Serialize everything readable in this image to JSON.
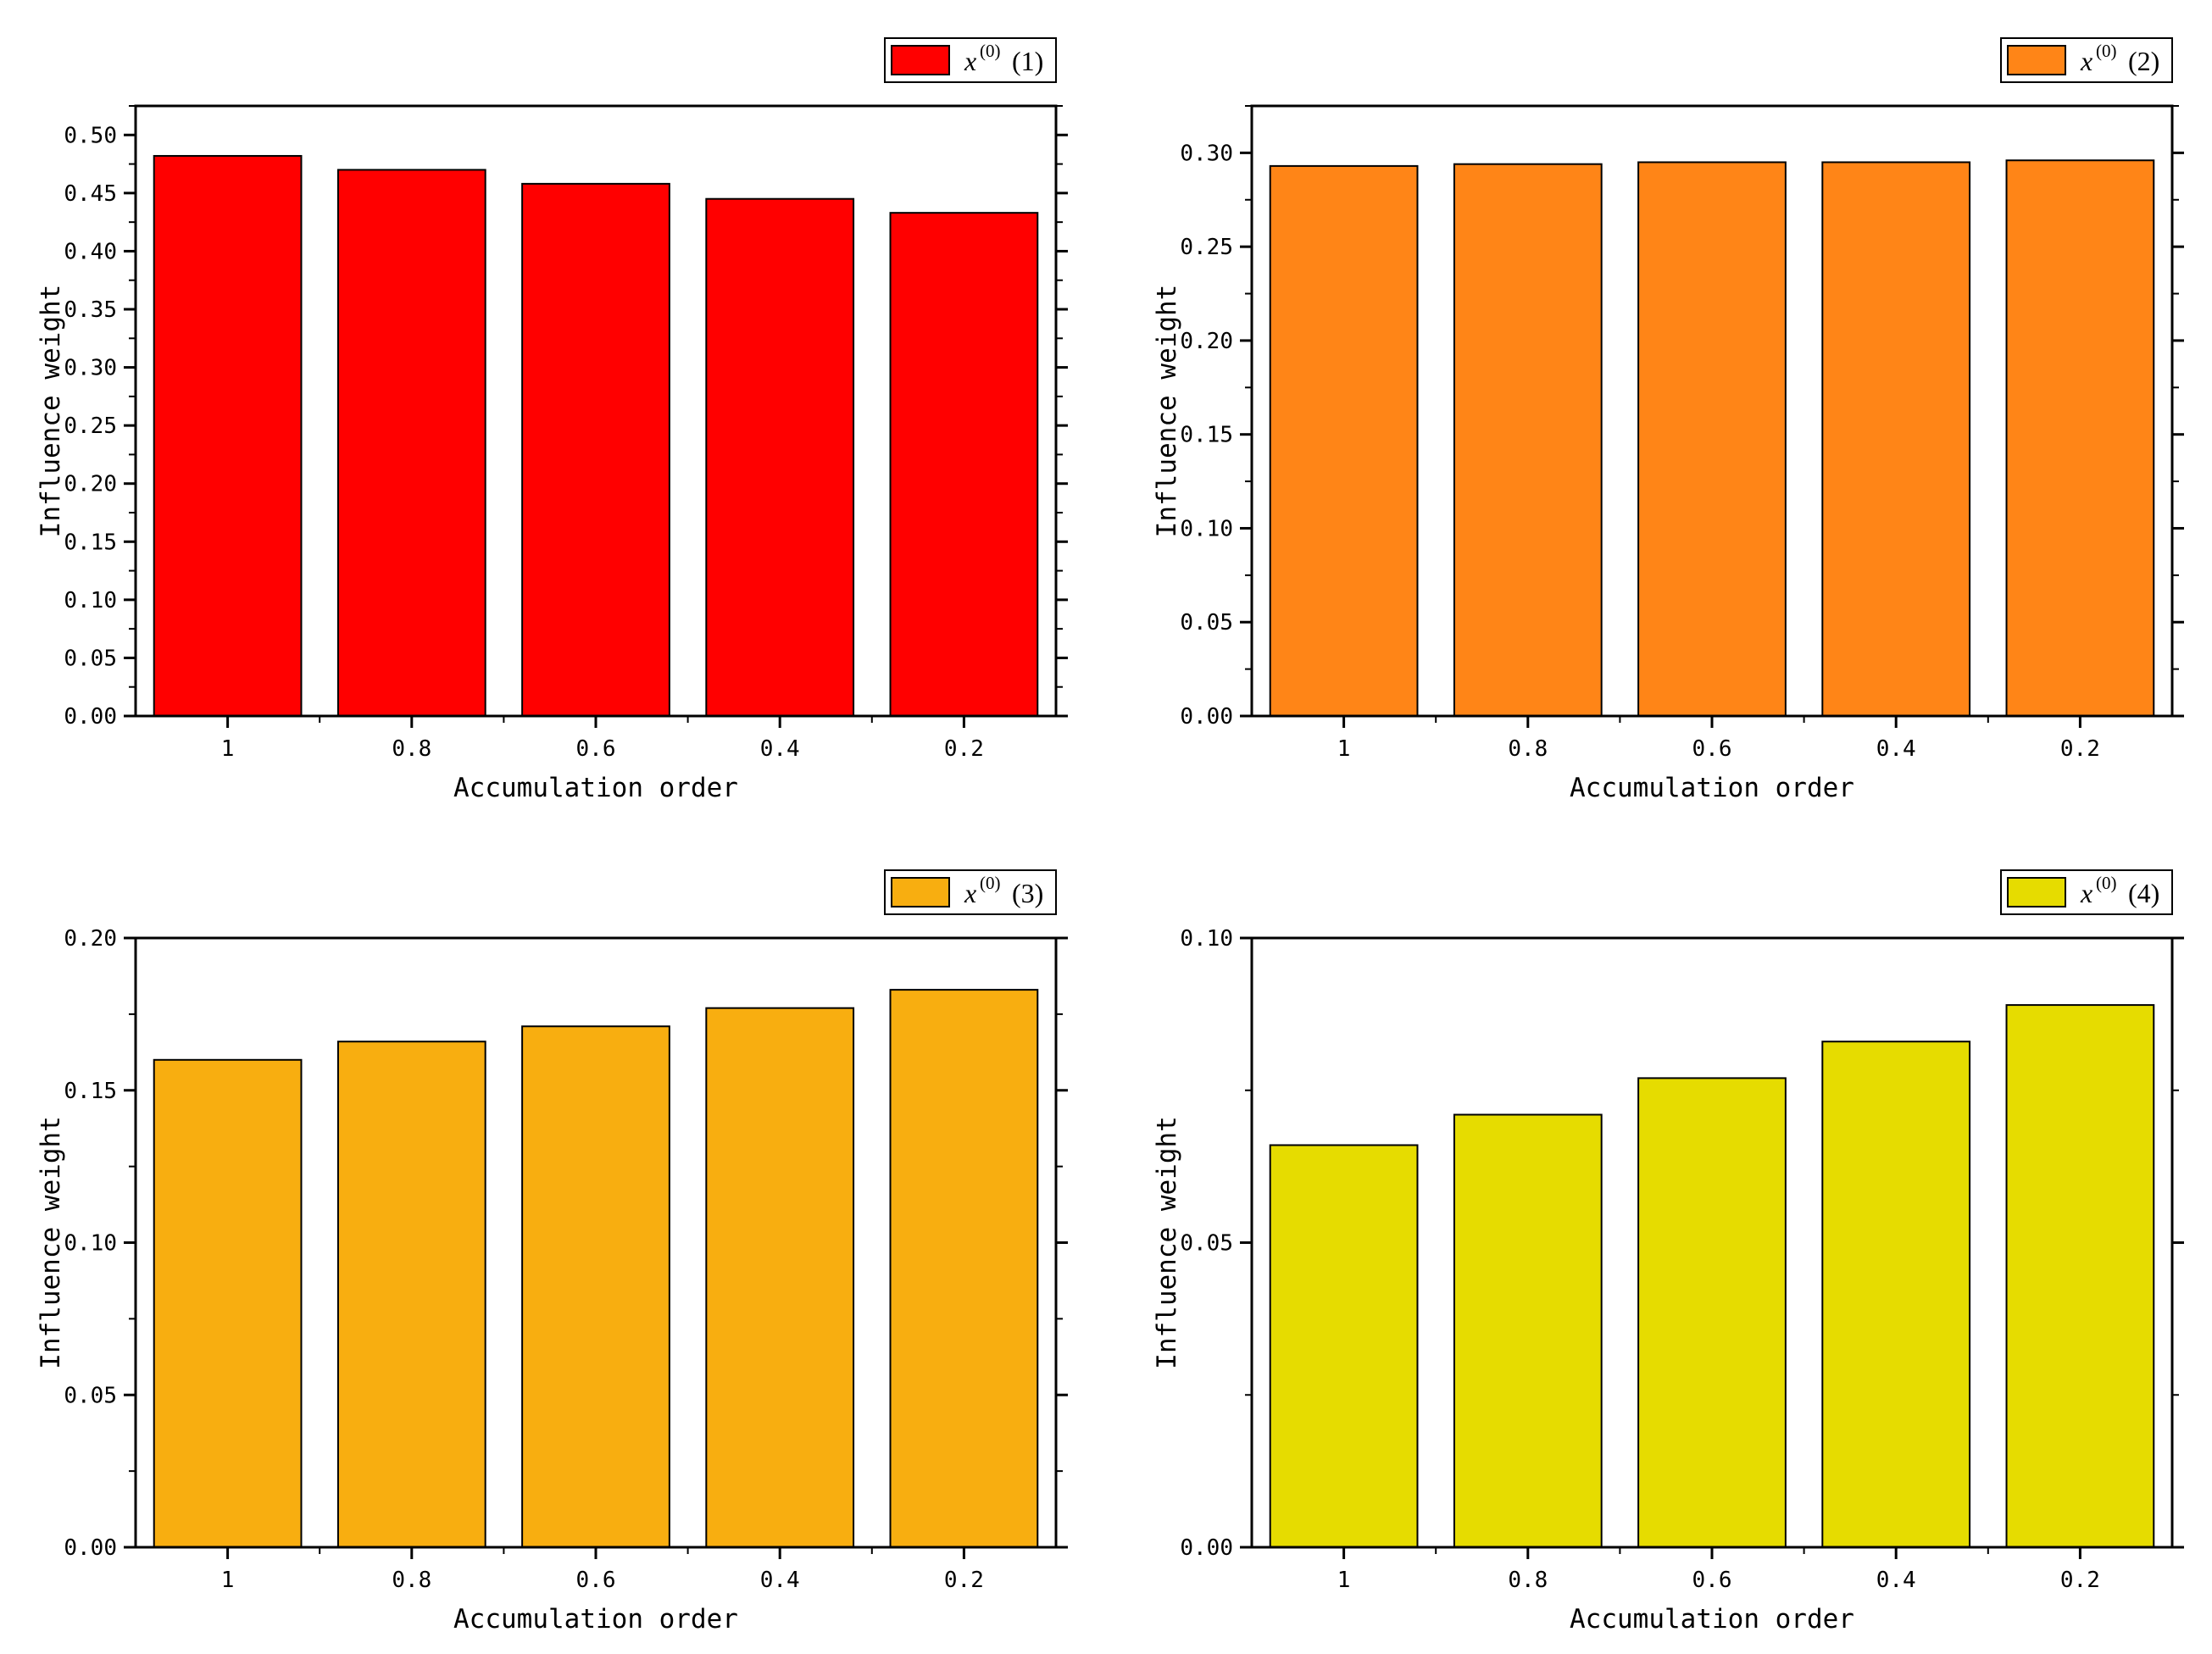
{
  "chart_data": [
    {
      "type": "bar",
      "legend": {
        "var": "x",
        "sup": "(0)",
        "index": "(1)"
      },
      "categories": [
        "1",
        "0.8",
        "0.6",
        "0.4",
        "0.2"
      ],
      "values": [
        0.482,
        0.47,
        0.458,
        0.445,
        0.433
      ],
      "color": "#ff0000",
      "xlabel": "Accumulation order",
      "ylabel": "Influence weight",
      "ylim": [
        0,
        0.525
      ],
      "yticks": [
        "0.00",
        "0.05",
        "0.10",
        "0.15",
        "0.20",
        "0.25",
        "0.30",
        "0.35",
        "0.40",
        "0.45",
        "0.50"
      ]
    },
    {
      "type": "bar",
      "legend": {
        "var": "x",
        "sup": "(0)",
        "index": "(2)"
      },
      "categories": [
        "1",
        "0.8",
        "0.6",
        "0.4",
        "0.2"
      ],
      "values": [
        0.293,
        0.294,
        0.295,
        0.295,
        0.296
      ],
      "color": "#ff8517",
      "xlabel": "Accumulation order",
      "ylabel": "Influence weight",
      "ylim": [
        0,
        0.325
      ],
      "yticks": [
        "0.00",
        "0.05",
        "0.10",
        "0.15",
        "0.20",
        "0.25",
        "0.30"
      ]
    },
    {
      "type": "bar",
      "legend": {
        "var": "x",
        "sup": "(0)",
        "index": "(3)"
      },
      "categories": [
        "1",
        "0.8",
        "0.6",
        "0.4",
        "0.2"
      ],
      "values": [
        0.16,
        0.166,
        0.171,
        0.177,
        0.183
      ],
      "color": "#f8ae10",
      "xlabel": "Accumulation order",
      "ylabel": "Influence weight",
      "ylim": [
        0,
        0.2
      ],
      "yticks": [
        "0.00",
        "0.05",
        "0.10",
        "0.15",
        "0.20"
      ]
    },
    {
      "type": "bar",
      "legend": {
        "var": "x",
        "sup": "(0)",
        "index": "(4)"
      },
      "categories": [
        "1",
        "0.8",
        "0.6",
        "0.4",
        "0.2"
      ],
      "values": [
        0.066,
        0.071,
        0.077,
        0.083,
        0.089
      ],
      "color": "#e6dc00",
      "xlabel": "Accumulation order",
      "ylabel": "Influence weight",
      "ylim": [
        0,
        0.1
      ],
      "yticks": [
        "0.00",
        "0.05",
        "0.10"
      ]
    }
  ]
}
